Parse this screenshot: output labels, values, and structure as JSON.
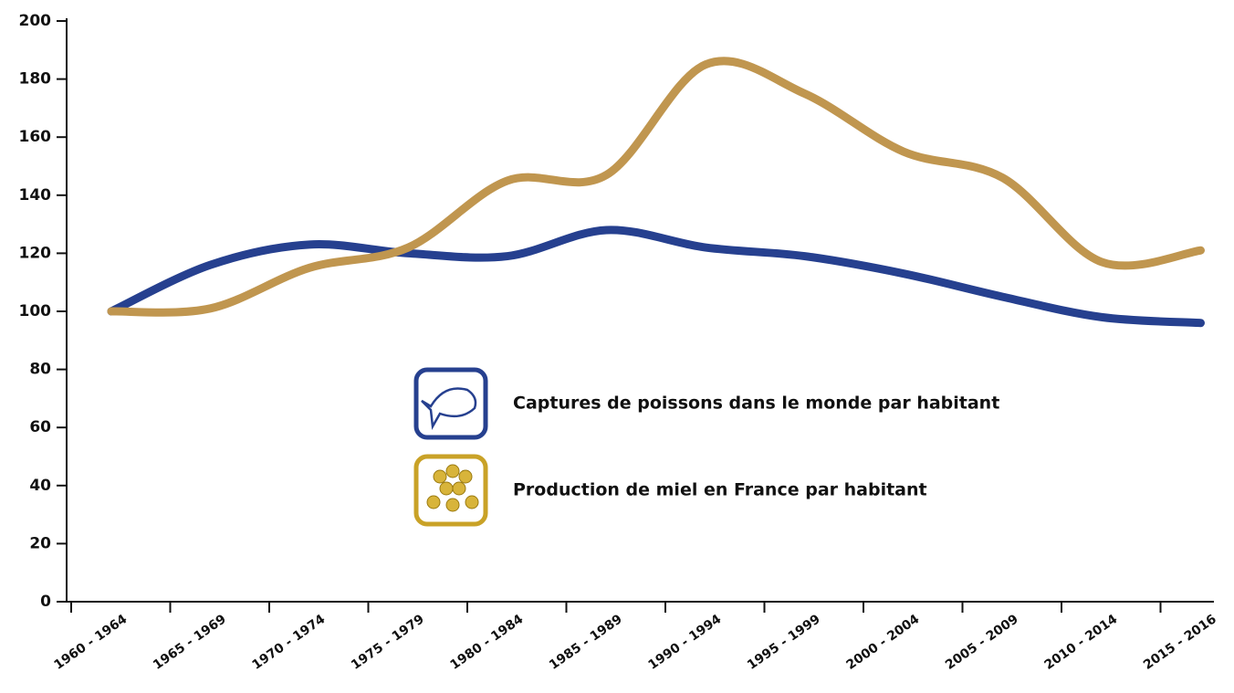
{
  "chart_data": {
    "type": "line",
    "categories": [
      "1960 - 1964",
      "1965 - 1969",
      "1970 - 1974",
      "1975 - 1979",
      "1980 - 1984",
      "1985 - 1989",
      "1990 - 1994",
      "1995 - 1999",
      "2000 - 2004",
      "2005 - 2009",
      "2010 - 2014",
      "2015 - 2016"
    ],
    "series": [
      {
        "name": "Captures de poissons dans le monde par habitant",
        "color": "#26408f",
        "values": [
          100,
          116,
          123,
          120,
          119,
          128,
          122,
          119,
          113,
          105,
          98,
          96
        ]
      },
      {
        "name": "Production de miel en France par habitant",
        "color": "#c0964f",
        "values": [
          100,
          101,
          115,
          122,
          145,
          147,
          185,
          175,
          155,
          146,
          117,
          121
        ]
      }
    ],
    "ylim": [
      0,
      200
    ],
    "yticks": [
      0,
      20,
      40,
      60,
      80,
      100,
      120,
      140,
      160,
      180,
      200
    ]
  }
}
